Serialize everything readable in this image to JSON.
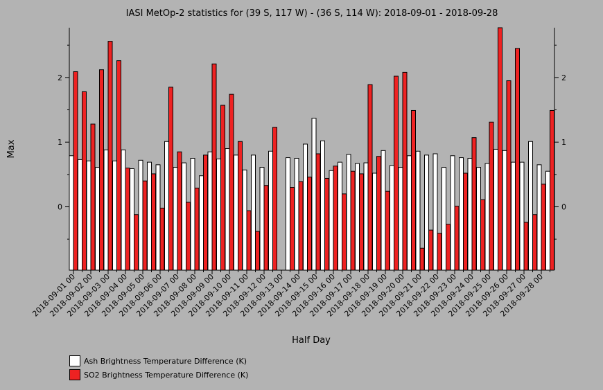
{
  "chart_data": {
    "type": "bar",
    "title": "IASI MetOp-2 statistics for (39 S, 117 W) - (36 S, 114 W): 2018-09-01 - 2018-09-28",
    "xlabel": "Half Day",
    "ylabel": "Max",
    "ylim": [
      -0.98,
      2.77
    ],
    "yticks": [
      0,
      1,
      2
    ],
    "grid": false,
    "legend_position": "bottom-left",
    "categories": [
      "2018-09-01 00",
      "2018-09-01 12",
      "2018-09-02 00",
      "2018-09-02 12",
      "2018-09-03 00",
      "2018-09-03 12",
      "2018-09-04 00",
      "2018-09-04 12",
      "2018-09-05 00",
      "2018-09-05 12",
      "2018-09-06 00",
      "2018-09-06 12",
      "2018-09-07 00",
      "2018-09-07 12",
      "2018-09-08 00",
      "2018-09-08 12",
      "2018-09-09 00",
      "2018-09-09 12",
      "2018-09-10 00",
      "2018-09-10 12",
      "2018-09-11 00",
      "2018-09-11 12",
      "2018-09-12 00",
      "2018-09-12 12",
      "2018-09-13 00",
      "2018-09-13 12",
      "2018-09-14 00",
      "2018-09-14 12",
      "2018-09-15 00",
      "2018-09-15 12",
      "2018-09-16 00",
      "2018-09-16 12",
      "2018-09-17 00",
      "2018-09-17 12",
      "2018-09-18 00",
      "2018-09-18 12",
      "2018-09-19 00",
      "2018-09-19 12",
      "2018-09-20 00",
      "2018-09-20 12",
      "2018-09-21 00",
      "2018-09-21 12",
      "2018-09-22 00",
      "2018-09-22 12",
      "2018-09-23 00",
      "2018-09-23 12",
      "2018-09-24 00",
      "2018-09-24 12",
      "2018-09-25 00",
      "2018-09-25 12",
      "2018-09-26 00",
      "2018-09-26 12",
      "2018-09-27 00",
      "2018-09-27 12",
      "2018-09-28 00",
      "2018-09-28 12"
    ],
    "tick_labels": [
      "2018-09-01 00",
      "2018-09-02 00",
      "2018-09-03 00",
      "2018-09-04 00",
      "2018-09-05 00",
      "2018-09-06 00",
      "2018-09-07 00",
      "2018-09-08 00",
      "2018-09-09 00",
      "2018-09-10 00",
      "2018-09-11 00",
      "2018-09-12 00",
      "2018-09-13 00",
      "2018-09-14 00",
      "2018-09-15 00",
      "2018-09-16 00",
      "2018-09-17 00",
      "2018-09-18 00",
      "2018-09-19 00",
      "2018-09-20 00",
      "2018-09-21 00",
      "2018-09-22 00",
      "2018-09-23 00",
      "2018-09-24 00",
      "2018-09-25 00",
      "2018-09-26 00",
      "2018-09-27 00",
      "2018-09-28 00"
    ],
    "series": [
      {
        "name": "Ash Brightness Temperature Difference (K)",
        "color": "#ffffff",
        "values": [
          0.79,
          0.73,
          0.71,
          0.61,
          0.88,
          0.71,
          0.88,
          0.59,
          0.72,
          0.69,
          0.65,
          1.01,
          0.61,
          0.68,
          0.75,
          0.48,
          0.85,
          0.74,
          0.9,
          0.8,
          0.57,
          0.8,
          0.61,
          0.86,
          null,
          0.76,
          0.75,
          0.97,
          1.37,
          1.02,
          0.56,
          0.69,
          0.81,
          0.67,
          0.68,
          0.52,
          0.87,
          0.64,
          0.61,
          0.79,
          0.86,
          0.8,
          0.82,
          0.61,
          0.79,
          0.76,
          0.75,
          0.61,
          0.67,
          0.89,
          0.87,
          0.69,
          0.69,
          1.01,
          0.65,
          0.55
        ]
      },
      {
        "name": "SO2 Brightness Temperature Difference (K)",
        "color": "#ee2222",
        "values": [
          2.09,
          1.78,
          1.28,
          2.12,
          2.56,
          2.26,
          0.6,
          -0.12,
          0.4,
          0.51,
          -0.02,
          1.85,
          0.85,
          0.07,
          0.29,
          0.8,
          2.21,
          1.57,
          1.74,
          1.01,
          -0.06,
          -0.38,
          0.33,
          1.23,
          null,
          0.3,
          0.39,
          0.46,
          0.82,
          0.44,
          0.63,
          0.2,
          0.55,
          0.51,
          1.89,
          0.78,
          0.24,
          2.02,
          2.08,
          1.49,
          -0.64,
          -0.36,
          -0.41,
          -0.27,
          0.01,
          0.52,
          1.07,
          0.11,
          1.31,
          2.77,
          1.95,
          2.45,
          -0.24,
          -0.12,
          0.35,
          1.49
        ]
      }
    ]
  }
}
